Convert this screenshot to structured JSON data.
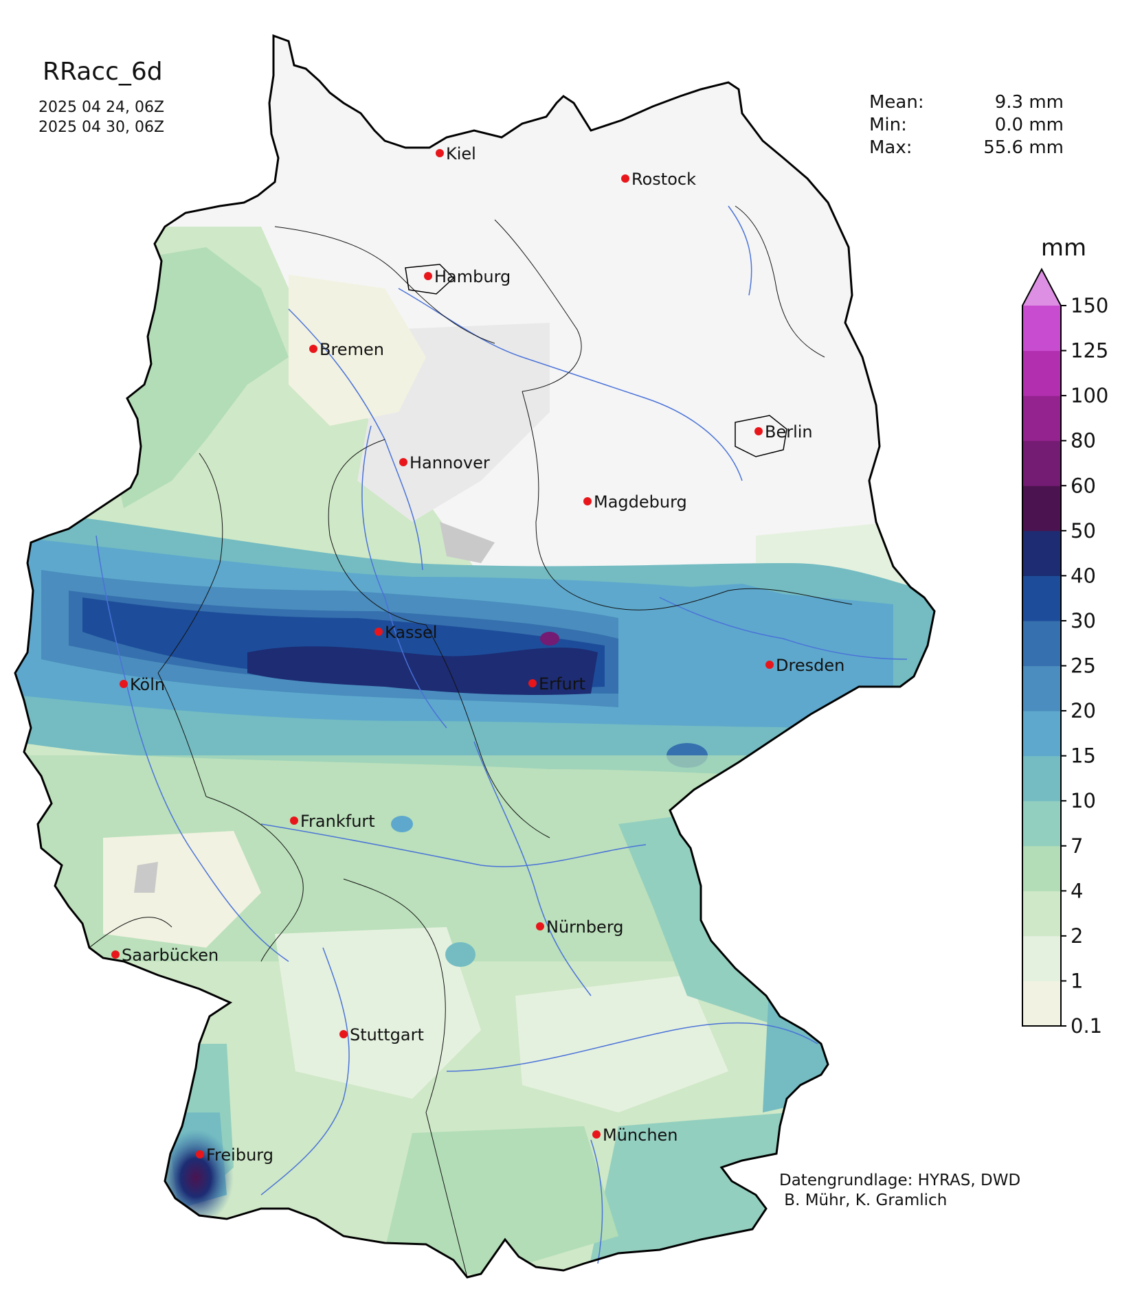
{
  "map": {
    "title": "RRacc_6d",
    "start_date": "2025 04 24, 06Z",
    "end_date": "2025 04 30, 06Z"
  },
  "stats": [
    {
      "label": "Mean:",
      "value": "9.3 mm"
    },
    {
      "label": "Min:",
      "value": "0.0 mm"
    },
    {
      "label": "Max:",
      "value": "55.6 mm"
    }
  ],
  "colorbar": {
    "unit": "mm",
    "ticks": [
      "0.1",
      "1",
      "2",
      "4",
      "7",
      "10",
      "15",
      "20",
      "25",
      "30",
      "40",
      "50",
      "60",
      "80",
      "100",
      "125",
      "150"
    ],
    "colors": [
      "#f2f2e2",
      "#e5f1df",
      "#cfe8c7",
      "#b2ddb6",
      "#93cfbf",
      "#74bcc2",
      "#5ea8cd",
      "#4a8dbe",
      "#3670ae",
      "#1d4d9a",
      "#1d2c73",
      "#4b1450",
      "#741b73",
      "#94228f",
      "#b22fb0",
      "#c84ccf",
      "#d66adb",
      "#dd90e3"
    ]
  },
  "cities": [
    {
      "name": "Kiel",
      "color": "#e8161b"
    },
    {
      "name": "Rostock",
      "color": "#e8161b"
    },
    {
      "name": "Hamburg",
      "color": "#e8161b"
    },
    {
      "name": "Bremen",
      "color": "#e8161b"
    },
    {
      "name": "Berlin",
      "color": "#e8161b"
    },
    {
      "name": "Hannover",
      "color": "#e8161b"
    },
    {
      "name": "Magdeburg",
      "color": "#e8161b"
    },
    {
      "name": "Kassel",
      "color": "#e8161b"
    },
    {
      "name": "Dresden",
      "color": "#e8161b"
    },
    {
      "name": "Köln",
      "color": "#e8161b"
    },
    {
      "name": "Erfurt",
      "color": "#e8161b"
    },
    {
      "name": "Frankfurt",
      "color": "#e8161b"
    },
    {
      "name": "Nürnberg",
      "color": "#e8161b"
    },
    {
      "name": "Saarbücken",
      "color": "#e8161b"
    },
    {
      "name": "Stuttgart",
      "color": "#e8161b"
    },
    {
      "name": "München",
      "color": "#e8161b"
    },
    {
      "name": "Freiburg",
      "color": "#e8161b"
    }
  ],
  "credits": {
    "line1": "Datengrundlage: HYRAS, DWD",
    "line2": " B. Mühr, K. Gramlich"
  }
}
